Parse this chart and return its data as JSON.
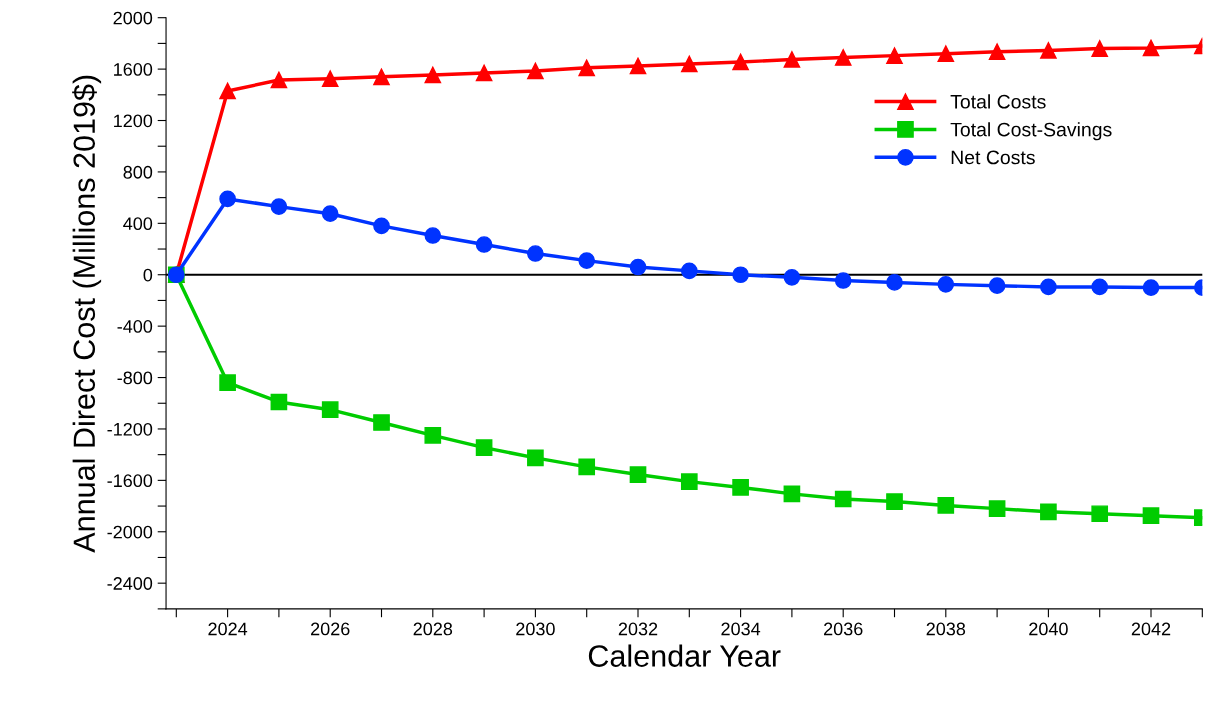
{
  "chart_data": {
    "type": "line",
    "xlabel": "Calendar Year",
    "ylabel": "Annual Direct Cost (Millions 2019$)",
    "x": [
      2023,
      2024,
      2025,
      2026,
      2027,
      2028,
      2029,
      2030,
      2031,
      2032,
      2033,
      2034,
      2035,
      2036,
      2037,
      2038,
      2039,
      2040,
      2041,
      2042,
      2043
    ],
    "series": [
      {
        "name": "Total Costs",
        "color": "#ff0000",
        "marker": "triangle",
        "values": [
          0,
          1430,
          1515,
          1525,
          1540,
          1555,
          1570,
          1585,
          1610,
          1625,
          1640,
          1655,
          1675,
          1690,
          1705,
          1720,
          1735,
          1745,
          1760,
          1765,
          1780
        ]
      },
      {
        "name": "Total Cost-Savings",
        "color": "#00cc00",
        "marker": "square",
        "values": [
          0,
          -840,
          -990,
          -1050,
          -1150,
          -1250,
          -1345,
          -1425,
          -1495,
          -1555,
          -1610,
          -1655,
          -1705,
          -1745,
          -1765,
          -1795,
          -1820,
          -1845,
          -1860,
          -1875,
          -1890
        ]
      },
      {
        "name": "Net Costs",
        "color": "#0033ff",
        "marker": "circle",
        "values": [
          0,
          590,
          530,
          475,
          380,
          305,
          235,
          165,
          110,
          60,
          30,
          0,
          -20,
          -45,
          -60,
          -75,
          -85,
          -95,
          -95,
          -100,
          -100
        ]
      }
    ],
    "xlim": [
      2022.8,
      2043
    ],
    "xticks": [
      {
        "value": 2023,
        "label": null
      },
      2024,
      {
        "value": 2025,
        "label": null
      },
      2026,
      {
        "value": 2027,
        "label": null
      },
      2028,
      {
        "value": 2029,
        "label": null
      },
      2030,
      {
        "value": 2031,
        "label": null
      },
      2032,
      {
        "value": 2033,
        "label": null
      },
      2034,
      {
        "value": 2035,
        "label": null
      },
      2036,
      {
        "value": 2037,
        "label": null
      },
      2038,
      {
        "value": 2039,
        "label": null
      },
      2040,
      {
        "value": 2041,
        "label": null
      },
      2042,
      {
        "value": 2043,
        "label": null
      }
    ],
    "ylim": [
      -2600,
      2000
    ],
    "yticks": [
      {
        "value": -2600,
        "label": null
      },
      -2400,
      {
        "value": -2200,
        "label": null
      },
      -2000,
      {
        "value": -1800,
        "label": null
      },
      -1600,
      {
        "value": -1400,
        "label": null
      },
      -1200,
      {
        "value": -1000,
        "label": null
      },
      -800,
      {
        "value": -600,
        "label": null
      },
      -400,
      {
        "value": -200,
        "label": null
      },
      0,
      {
        "value": 200,
        "label": null
      },
      400,
      {
        "value": 600,
        "label": null
      },
      800,
      {
        "value": 1000,
        "label": null
      },
      1200,
      {
        "value": 1400,
        "label": null
      },
      1600,
      {
        "value": 1800,
        "label": null
      },
      2000
    ],
    "ref_lines": [
      {
        "axis": "y",
        "value": 0,
        "color": "#000000"
      }
    ],
    "grid": false,
    "legend": "top right",
    "line_style": "solid"
  }
}
